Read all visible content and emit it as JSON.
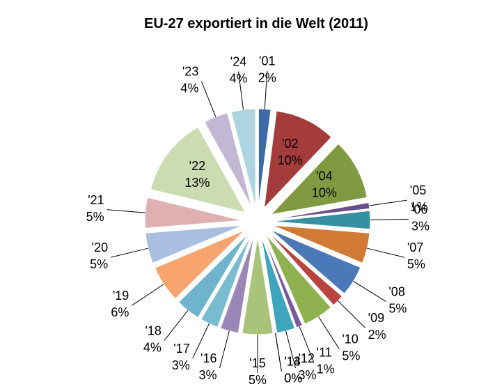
{
  "chart_data": {
    "type": "pie",
    "title": "EU-27 exportiert in die Welt (2011)",
    "categories": [
      "'01",
      "'02",
      "'04",
      "'05",
      "'06",
      "'07",
      "'08",
      "'09",
      "'10",
      "'11",
      "'12",
      "'13",
      "'14",
      "'15",
      "'16",
      "'17",
      "'18",
      "'19",
      "'20",
      "'21",
      "'22",
      "'23",
      "'24"
    ],
    "values": [
      2,
      10,
      10,
      1,
      3,
      5,
      5,
      2,
      5,
      1,
      3,
      0,
      0,
      5,
      3,
      3,
      4,
      6,
      5,
      5,
      13,
      4,
      4
    ],
    "value_labels": [
      "2%",
      "10%",
      "10%",
      "1%",
      "3%",
      "5%",
      "5%",
      "2%",
      "5%",
      "1%",
      "3%",
      "0%",
      "0%",
      "5%",
      "3%",
      "3%",
      "4%",
      "6%",
      "5%",
      "5%",
      "13%",
      "4%",
      "4%"
    ],
    "colors": [
      "#3e6aa8",
      "#a33c3a",
      "#7f9a40",
      "#6a4e8a",
      "#35909f",
      "#d07a35",
      "#4a78b8",
      "#b8433f",
      "#8fb04f",
      "#7a5a9c",
      "#3fa5bd",
      "#f28c2f",
      "#d47f7f",
      "#a9c47a",
      "#9a87b6",
      "#79bcd0",
      "#6fb4cc",
      "#f7a46e",
      "#a8bfe0",
      "#deb1b0",
      "#ccdcb0",
      "#c2b8d4",
      "#aed4e2"
    ]
  }
}
